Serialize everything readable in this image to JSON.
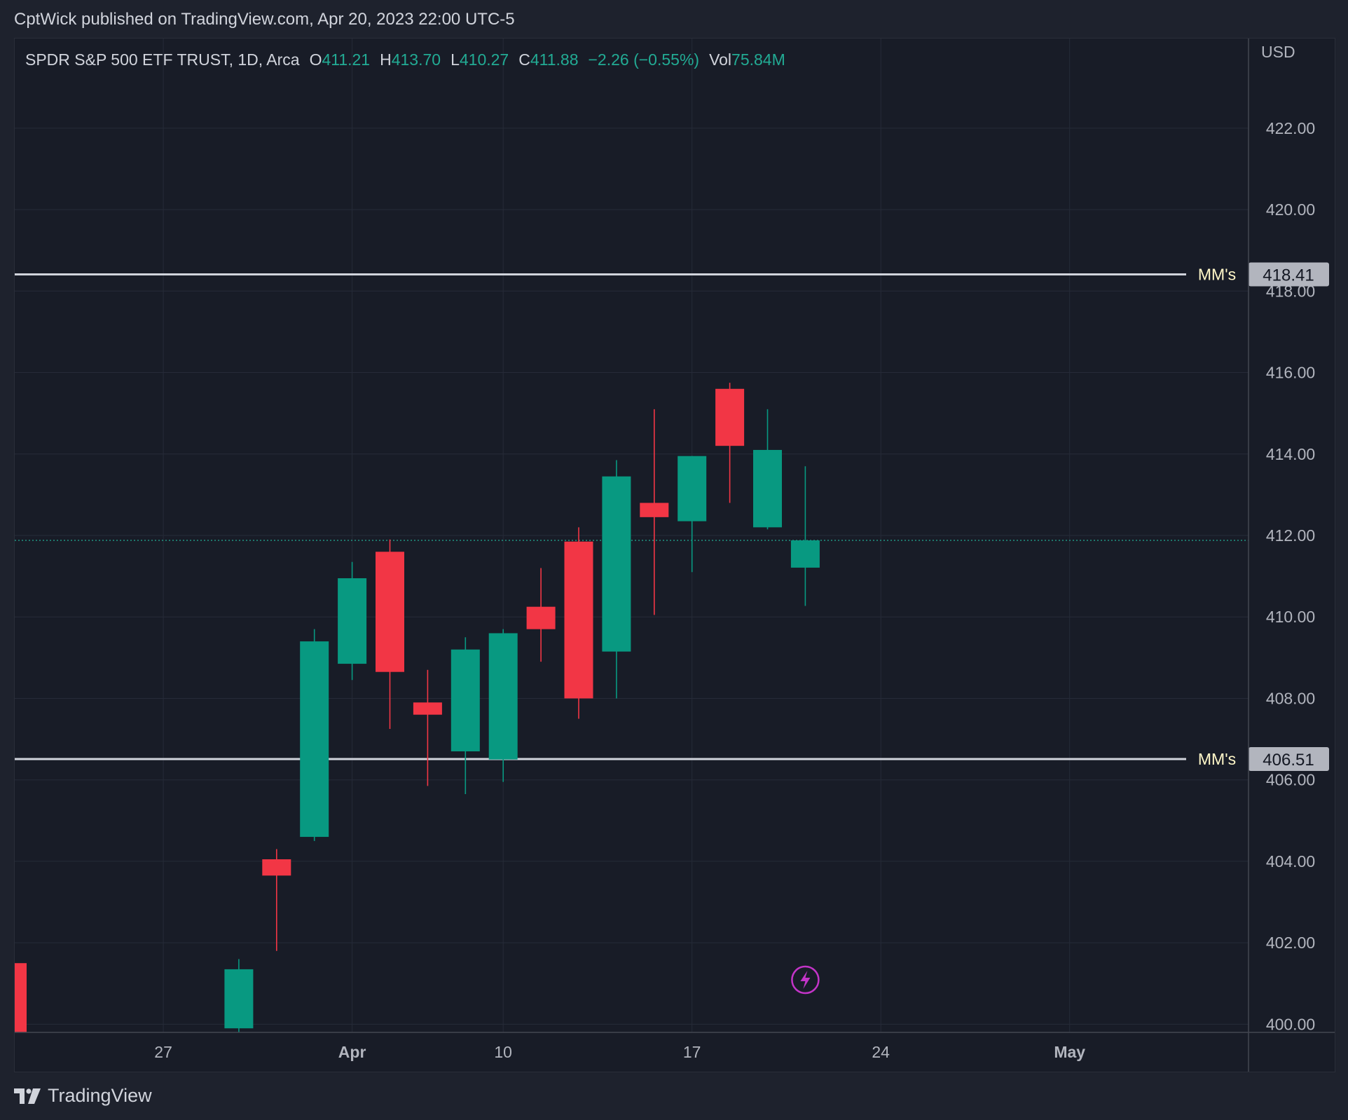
{
  "header": {
    "text": "CptWick published on TradingView.com, Apr 20, 2023 22:00 UTC-5"
  },
  "legend": {
    "symbol": "SPDR S&P 500 ETF TRUST, 1D, Arca",
    "o_label": "O",
    "o_value": "411.21",
    "h_label": "H",
    "h_value": "413.70",
    "l_label": "L",
    "l_value": "410.27",
    "c_label": "C",
    "c_value": "411.88",
    "change": "−2.26 (−0.55%)",
    "vol_label": "Vol",
    "vol_value": "75.84M"
  },
  "footer": {
    "brand": "TradingView"
  },
  "colors": {
    "up": "#089981",
    "down": "#f23645",
    "grid": "#262b38",
    "axis_text": "#b2b5be",
    "level_line": "#d1d4dc",
    "level_label_bg": "#b2b5be",
    "price_line": "#22ab94",
    "mm_text": "#fff7c8",
    "event_icon": "#c334c8"
  },
  "chart_data": {
    "type": "candlestick",
    "currency_label": "USD",
    "ylim": [
      399.8,
      424.2
    ],
    "yticks": [
      "400.00",
      "402.00",
      "404.00",
      "406.00",
      "408.00",
      "410.00",
      "412.00",
      "414.00",
      "416.00",
      "418.00",
      "420.00",
      "422.00"
    ],
    "xticks": [
      {
        "label": "27",
        "index": 3,
        "bold": false
      },
      {
        "label": "Apr",
        "index": 8,
        "bold": true
      },
      {
        "label": "10",
        "index": 12,
        "bold": false
      },
      {
        "label": "17",
        "index": 17,
        "bold": false
      },
      {
        "label": "24",
        "index": 22,
        "bold": false
      },
      {
        "label": "May",
        "index": 27,
        "bold": true
      }
    ],
    "candles": [
      {
        "i": -1,
        "o": 401.5,
        "h": 402.5,
        "l": 399.8,
        "c": 399.8
      },
      {
        "i": 5,
        "o": 399.9,
        "h": 401.6,
        "l": 399.8,
        "c": 401.35
      },
      {
        "i": 6,
        "o": 404.05,
        "h": 404.3,
        "l": 401.8,
        "c": 403.65
      },
      {
        "i": 7,
        "o": 404.6,
        "h": 409.7,
        "l": 404.5,
        "c": 409.4
      },
      {
        "i": 8,
        "o": 408.85,
        "h": 411.35,
        "l": 408.45,
        "c": 410.95
      },
      {
        "i": 9,
        "o": 411.6,
        "h": 411.9,
        "l": 407.25,
        "c": 408.65
      },
      {
        "i": 10,
        "o": 407.9,
        "h": 408.7,
        "l": 405.85,
        "c": 407.6
      },
      {
        "i": 11,
        "o": 406.7,
        "h": 409.5,
        "l": 405.65,
        "c": 409.2
      },
      {
        "i": 12,
        "o": 406.5,
        "h": 409.7,
        "l": 405.95,
        "c": 409.6
      },
      {
        "i": 13,
        "o": 410.25,
        "h": 411.2,
        "l": 408.9,
        "c": 409.7
      },
      {
        "i": 14,
        "o": 411.85,
        "h": 412.2,
        "l": 407.5,
        "c": 408.0
      },
      {
        "i": 15,
        "o": 409.15,
        "h": 413.85,
        "l": 408.0,
        "c": 413.45
      },
      {
        "i": 16,
        "o": 412.8,
        "h": 415.1,
        "l": 410.05,
        "c": 412.45
      },
      {
        "i": 17,
        "o": 412.35,
        "h": 413.95,
        "l": 411.1,
        "c": 413.95
      },
      {
        "i": 18,
        "o": 415.6,
        "h": 415.75,
        "l": 412.8,
        "c": 414.2
      },
      {
        "i": 19,
        "o": 412.2,
        "h": 415.1,
        "l": 412.15,
        "c": 414.1
      },
      {
        "i": 20,
        "o": 411.21,
        "h": 413.7,
        "l": 410.27,
        "c": 411.88
      }
    ],
    "current_price": 411.88,
    "levels": [
      {
        "price": 418.41,
        "label": "MM's",
        "price_label": "418.41"
      },
      {
        "price": 406.51,
        "label": "MM's",
        "price_label": "406.51"
      }
    ],
    "event_marker_index": 20
  }
}
